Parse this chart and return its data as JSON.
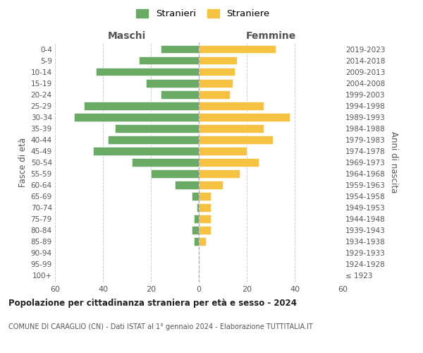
{
  "age_groups": [
    "100+",
    "95-99",
    "90-94",
    "85-89",
    "80-84",
    "75-79",
    "70-74",
    "65-69",
    "60-64",
    "55-59",
    "50-54",
    "45-49",
    "40-44",
    "35-39",
    "30-34",
    "25-29",
    "20-24",
    "15-19",
    "10-14",
    "5-9",
    "0-4"
  ],
  "birth_years": [
    "≤ 1923",
    "1924-1928",
    "1929-1933",
    "1934-1938",
    "1939-1943",
    "1944-1948",
    "1949-1953",
    "1954-1958",
    "1959-1963",
    "1964-1968",
    "1969-1973",
    "1974-1978",
    "1979-1983",
    "1984-1988",
    "1989-1993",
    "1994-1998",
    "1999-2003",
    "2004-2008",
    "2009-2013",
    "2014-2018",
    "2019-2023"
  ],
  "maschi": [
    0,
    0,
    0,
    2,
    3,
    2,
    1,
    3,
    10,
    20,
    28,
    44,
    38,
    35,
    52,
    48,
    16,
    22,
    43,
    25,
    16
  ],
  "femmine": [
    0,
    0,
    0,
    3,
    5,
    5,
    5,
    5,
    10,
    17,
    25,
    20,
    31,
    27,
    38,
    27,
    13,
    14,
    15,
    16,
    32
  ],
  "male_color": "#6aaa64",
  "female_color": "#f5c242",
  "title": "Popolazione per cittadinanza straniera per età e sesso - 2024",
  "subtitle": "COMUNE DI CARAGLIO (CN) - Dati ISTAT al 1° gennaio 2024 - Elaborazione TUTTITALIA.IT",
  "ylabel_left": "Fasce di età",
  "ylabel_right": "Anni di nascita",
  "legend_male": "Stranieri",
  "legend_female": "Straniere",
  "label_maschi": "Maschi",
  "label_femmine": "Femmine",
  "xlim": 60,
  "bg_color": "#ffffff",
  "grid_color": "#cccccc"
}
